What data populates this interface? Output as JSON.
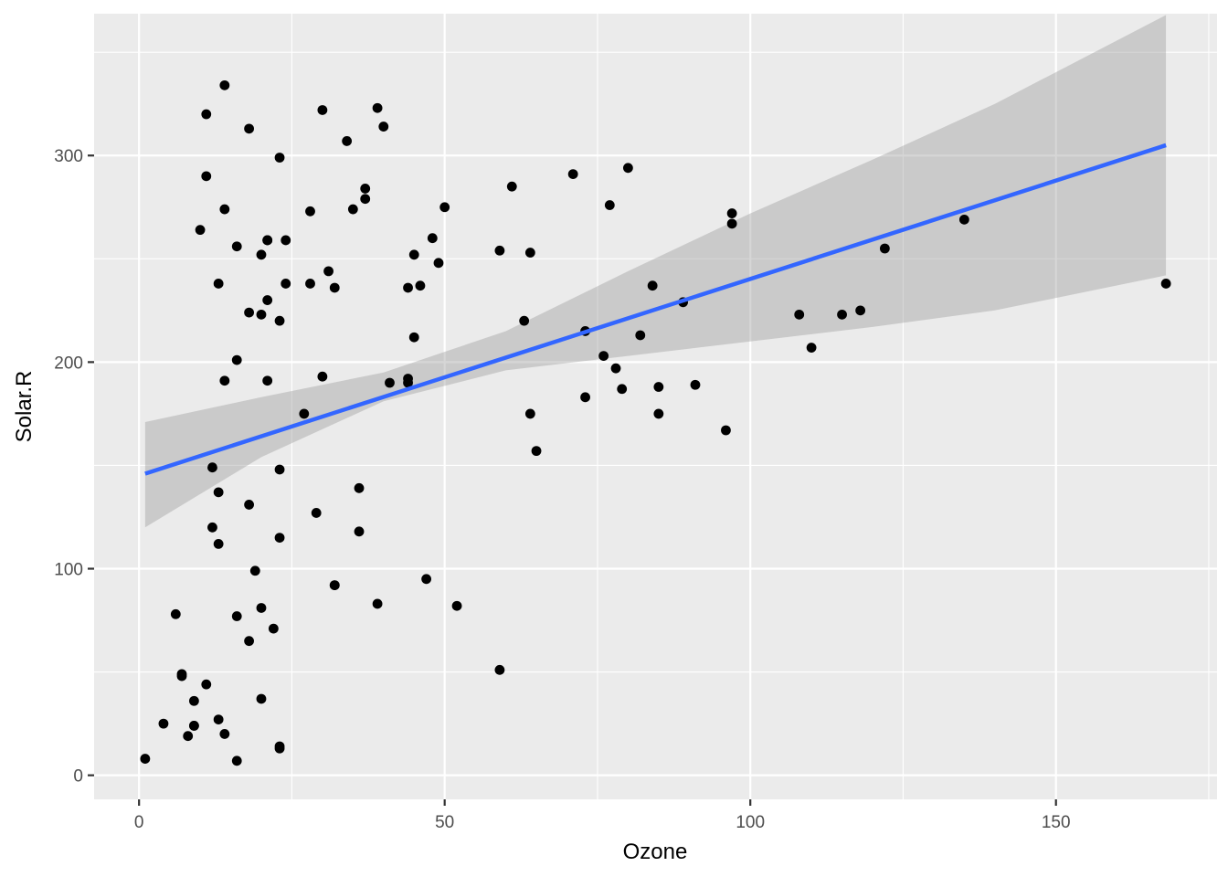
{
  "chart_data": {
    "type": "scatter",
    "title": "",
    "xlabel": "Ozone",
    "ylabel": "Solar.R",
    "xlim": [
      -7.35,
      176.35
    ],
    "ylim": [
      -11.65,
      368.65
    ],
    "x_ticks": [
      0,
      50,
      100,
      150
    ],
    "y_ticks": [
      0,
      100,
      200,
      300
    ],
    "x_tick_labels": [
      "0",
      "50",
      "100",
      "150"
    ],
    "y_tick_labels": [
      "0",
      "100",
      "200",
      "300"
    ],
    "grid": true,
    "legend": "none",
    "colors": {
      "panel": "#EBEBEB",
      "grid": "#FFFFFF",
      "point": "#000000",
      "fit_line": "#3366FF",
      "ribbon": "#999999"
    },
    "points": [
      [
        41,
        190
      ],
      [
        36,
        118
      ],
      [
        12,
        149
      ],
      [
        18,
        313
      ],
      [
        23,
        299
      ],
      [
        19,
        99
      ],
      [
        8,
        19
      ],
      [
        16,
        256
      ],
      [
        11,
        290
      ],
      [
        14,
        274
      ],
      [
        18,
        65
      ],
      [
        14,
        334
      ],
      [
        34,
        307
      ],
      [
        6,
        78
      ],
      [
        30,
        322
      ],
      [
        11,
        44
      ],
      [
        1,
        8
      ],
      [
        11,
        320
      ],
      [
        4,
        25
      ],
      [
        32,
        92
      ],
      [
        23,
        13
      ],
      [
        45,
        252
      ],
      [
        115,
        223
      ],
      [
        37,
        279
      ],
      [
        29,
        127
      ],
      [
        71,
        291
      ],
      [
        39,
        323
      ],
      [
        23,
        148
      ],
      [
        21,
        191
      ],
      [
        37,
        284
      ],
      [
        20,
        37
      ],
      [
        12,
        120
      ],
      [
        13,
        137
      ],
      [
        135,
        269
      ],
      [
        49,
        248
      ],
      [
        32,
        236
      ],
      [
        64,
        175
      ],
      [
        40,
        314
      ],
      [
        77,
        276
      ],
      [
        97,
        267
      ],
      [
        97,
        272
      ],
      [
        85,
        175
      ],
      [
        10,
        264
      ],
      [
        27,
        175
      ],
      [
        7,
        48
      ],
      [
        48,
        260
      ],
      [
        35,
        274
      ],
      [
        61,
        285
      ],
      [
        79,
        187
      ],
      [
        63,
        220
      ],
      [
        16,
        7
      ],
      [
        80,
        294
      ],
      [
        108,
        223
      ],
      [
        20,
        81
      ],
      [
        52,
        82
      ],
      [
        82,
        213
      ],
      [
        50,
        275
      ],
      [
        64,
        253
      ],
      [
        59,
        254
      ],
      [
        39,
        83
      ],
      [
        9,
        24
      ],
      [
        16,
        77
      ],
      [
        122,
        255
      ],
      [
        89,
        229
      ],
      [
        110,
        207
      ],
      [
        44,
        192
      ],
      [
        28,
        273
      ],
      [
        65,
        157
      ],
      [
        22,
        71
      ],
      [
        59,
        51
      ],
      [
        23,
        115
      ],
      [
        31,
        244
      ],
      [
        44,
        190
      ],
      [
        21,
        259
      ],
      [
        9,
        36
      ],
      [
        45,
        212
      ],
      [
        168,
        238
      ],
      [
        73,
        215
      ],
      [
        76,
        203
      ],
      [
        118,
        225
      ],
      [
        84,
        237
      ],
      [
        85,
        188
      ],
      [
        96,
        167
      ],
      [
        78,
        197
      ],
      [
        73,
        183
      ],
      [
        91,
        189
      ],
      [
        47,
        95
      ],
      [
        32,
        92
      ],
      [
        20,
        252
      ],
      [
        23,
        220
      ],
      [
        21,
        230
      ],
      [
        24,
        259
      ],
      [
        44,
        236
      ],
      [
        21,
        259
      ],
      [
        28,
        238
      ],
      [
        9,
        24
      ],
      [
        13,
        112
      ],
      [
        46,
        237
      ],
      [
        18,
        224
      ],
      [
        13,
        27
      ],
      [
        24,
        238
      ],
      [
        16,
        201
      ],
      [
        13,
        238
      ],
      [
        23,
        14
      ],
      [
        36,
        139
      ],
      [
        7,
        49
      ],
      [
        14,
        20
      ],
      [
        30,
        193
      ],
      [
        14,
        191
      ],
      [
        18,
        131
      ],
      [
        20,
        223
      ]
    ],
    "fit_line": {
      "x": [
        1,
        168
      ],
      "y": [
        146,
        305
      ]
    },
    "confidence_band": {
      "x": [
        1,
        20,
        40,
        60,
        80,
        100,
        120,
        140,
        168
      ],
      "lower": [
        120,
        154,
        181,
        196,
        203,
        210,
        217,
        225,
        242
      ],
      "upper": [
        171,
        183,
        195,
        215,
        244,
        272,
        298,
        325,
        368
      ]
    }
  }
}
